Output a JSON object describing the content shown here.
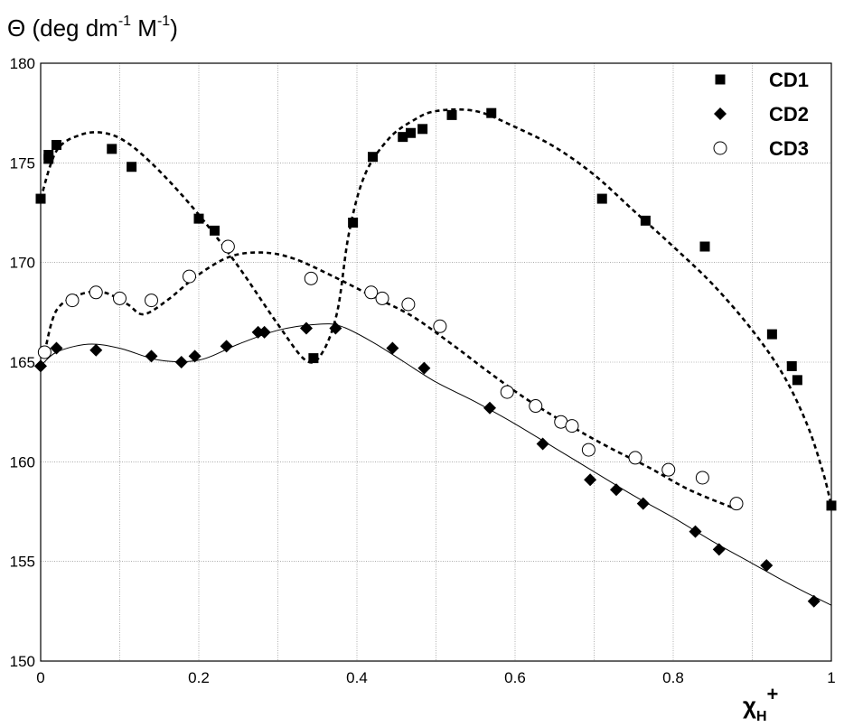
{
  "chart_data": {
    "type": "scatter",
    "ylabel": {
      "symbol": "Θ",
      "text": " (deg dm",
      "sup1": "-1",
      "mid": " M",
      "sup2": "-1",
      "end": ")"
    },
    "xlabel": {
      "main": "χ",
      "sub": "H",
      "sup": "+"
    },
    "xlim": [
      0,
      1
    ],
    "ylim": [
      150,
      180
    ],
    "x_ticks": [
      0,
      0.2,
      0.4,
      0.6,
      0.8,
      1
    ],
    "x_tick_labels": [
      "0",
      "0.2",
      "0.4",
      "0.6",
      "0.8",
      "1"
    ],
    "y_ticks": [
      150,
      155,
      160,
      165,
      170,
      175,
      180
    ],
    "y_tick_labels": [
      "150",
      "155",
      "160",
      "165",
      "170",
      "175",
      "180"
    ],
    "x_grid": [
      0,
      0.1,
      0.2,
      0.3,
      0.4,
      0.5,
      0.6,
      0.7,
      0.8,
      0.9,
      1
    ],
    "y_grid": [
      150,
      155,
      160,
      165,
      170,
      175,
      180
    ],
    "grid": true,
    "legend_position": "top-right",
    "series": [
      {
        "name": "CD1",
        "marker": "square",
        "points": [
          [
            0.0,
            173.2
          ],
          [
            0.01,
            175.2
          ],
          [
            0.01,
            175.4
          ],
          [
            0.02,
            175.9
          ],
          [
            0.09,
            175.7
          ],
          [
            0.115,
            174.8
          ],
          [
            0.2,
            172.2
          ],
          [
            0.22,
            171.6
          ],
          [
            0.345,
            165.2
          ],
          [
            0.395,
            172.0
          ],
          [
            0.42,
            175.3
          ],
          [
            0.458,
            176.3
          ],
          [
            0.468,
            176.5
          ],
          [
            0.483,
            176.7
          ],
          [
            0.52,
            177.4
          ],
          [
            0.57,
            177.5
          ],
          [
            0.71,
            173.2
          ],
          [
            0.765,
            172.1
          ],
          [
            0.84,
            170.8
          ],
          [
            0.925,
            166.4
          ],
          [
            0.95,
            164.8
          ],
          [
            0.957,
            164.1
          ],
          [
            1.0,
            157.8
          ]
        ],
        "curve": [
          [
            0.0,
            173.2
          ],
          [
            0.02,
            175.6
          ],
          [
            0.05,
            176.4
          ],
          [
            0.08,
            176.5
          ],
          [
            0.11,
            176.0
          ],
          [
            0.15,
            174.6
          ],
          [
            0.2,
            172.4
          ],
          [
            0.25,
            169.8
          ],
          [
            0.3,
            166.9
          ],
          [
            0.335,
            165.1
          ],
          [
            0.355,
            165.4
          ],
          [
            0.375,
            167.5
          ],
          [
            0.39,
            171.5
          ],
          [
            0.41,
            174.4
          ],
          [
            0.44,
            176.2
          ],
          [
            0.47,
            177.1
          ],
          [
            0.5,
            177.6
          ],
          [
            0.55,
            177.6
          ],
          [
            0.6,
            176.8
          ],
          [
            0.65,
            175.8
          ],
          [
            0.7,
            174.4
          ],
          [
            0.75,
            172.6
          ],
          [
            0.8,
            170.8
          ],
          [
            0.85,
            168.9
          ],
          [
            0.9,
            166.6
          ],
          [
            0.94,
            164.3
          ],
          [
            0.97,
            161.8
          ],
          [
            0.99,
            159.4
          ],
          [
            1.0,
            157.8
          ]
        ]
      },
      {
        "name": "CD2",
        "marker": "diamond",
        "points": [
          [
            0.0,
            164.8
          ],
          [
            0.02,
            165.7
          ],
          [
            0.07,
            165.6
          ],
          [
            0.14,
            165.3
          ],
          [
            0.178,
            165.0
          ],
          [
            0.195,
            165.3
          ],
          [
            0.235,
            165.8
          ],
          [
            0.275,
            166.5
          ],
          [
            0.283,
            166.5
          ],
          [
            0.336,
            166.7
          ],
          [
            0.373,
            166.7
          ],
          [
            0.445,
            165.7
          ],
          [
            0.485,
            164.7
          ],
          [
            0.568,
            162.7
          ],
          [
            0.635,
            160.9
          ],
          [
            0.695,
            159.1
          ],
          [
            0.728,
            158.6
          ],
          [
            0.762,
            157.9
          ],
          [
            0.828,
            156.5
          ],
          [
            0.858,
            155.6
          ],
          [
            0.918,
            154.8
          ],
          [
            0.978,
            153.0
          ]
        ],
        "curve": [
          [
            0.0,
            164.8
          ],
          [
            0.02,
            165.5
          ],
          [
            0.06,
            165.9
          ],
          [
            0.1,
            165.7
          ],
          [
            0.15,
            165.1
          ],
          [
            0.2,
            165.1
          ],
          [
            0.25,
            165.9
          ],
          [
            0.3,
            166.6
          ],
          [
            0.35,
            166.9
          ],
          [
            0.38,
            166.8
          ],
          [
            0.42,
            166.0
          ],
          [
            0.46,
            165.0
          ],
          [
            0.5,
            164.0
          ],
          [
            0.55,
            163.0
          ],
          [
            0.6,
            161.9
          ],
          [
            0.65,
            160.7
          ],
          [
            0.7,
            159.5
          ],
          [
            0.75,
            158.3
          ],
          [
            0.8,
            157.2
          ],
          [
            0.85,
            156.0
          ],
          [
            0.9,
            154.9
          ],
          [
            0.95,
            153.8
          ],
          [
            1.0,
            152.8
          ]
        ]
      },
      {
        "name": "CD3",
        "marker": "circle",
        "points": [
          [
            0.005,
            165.5
          ],
          [
            0.04,
            168.1
          ],
          [
            0.07,
            168.5
          ],
          [
            0.1,
            168.2
          ],
          [
            0.14,
            168.1
          ],
          [
            0.188,
            169.3
          ],
          [
            0.237,
            170.8
          ],
          [
            0.342,
            169.2
          ],
          [
            0.418,
            168.5
          ],
          [
            0.432,
            168.2
          ],
          [
            0.465,
            167.9
          ],
          [
            0.505,
            166.8
          ],
          [
            0.59,
            163.5
          ],
          [
            0.626,
            162.8
          ],
          [
            0.658,
            162.0
          ],
          [
            0.672,
            161.8
          ],
          [
            0.693,
            160.6
          ],
          [
            0.752,
            160.2
          ],
          [
            0.794,
            159.6
          ],
          [
            0.837,
            159.2
          ],
          [
            0.88,
            157.9
          ]
        ],
        "curve": [
          [
            0.005,
            165.5
          ],
          [
            0.02,
            167.6
          ],
          [
            0.05,
            168.4
          ],
          [
            0.08,
            168.5
          ],
          [
            0.11,
            167.9
          ],
          [
            0.13,
            167.4
          ],
          [
            0.16,
            168.1
          ],
          [
            0.2,
            169.4
          ],
          [
            0.24,
            170.3
          ],
          [
            0.28,
            170.5
          ],
          [
            0.32,
            170.2
          ],
          [
            0.37,
            169.3
          ],
          [
            0.42,
            168.3
          ],
          [
            0.47,
            167.3
          ],
          [
            0.52,
            165.9
          ],
          [
            0.57,
            164.4
          ],
          [
            0.62,
            163.0
          ],
          [
            0.67,
            161.8
          ],
          [
            0.72,
            160.7
          ],
          [
            0.77,
            159.7
          ],
          [
            0.82,
            158.6
          ],
          [
            0.875,
            157.7
          ]
        ]
      }
    ]
  }
}
